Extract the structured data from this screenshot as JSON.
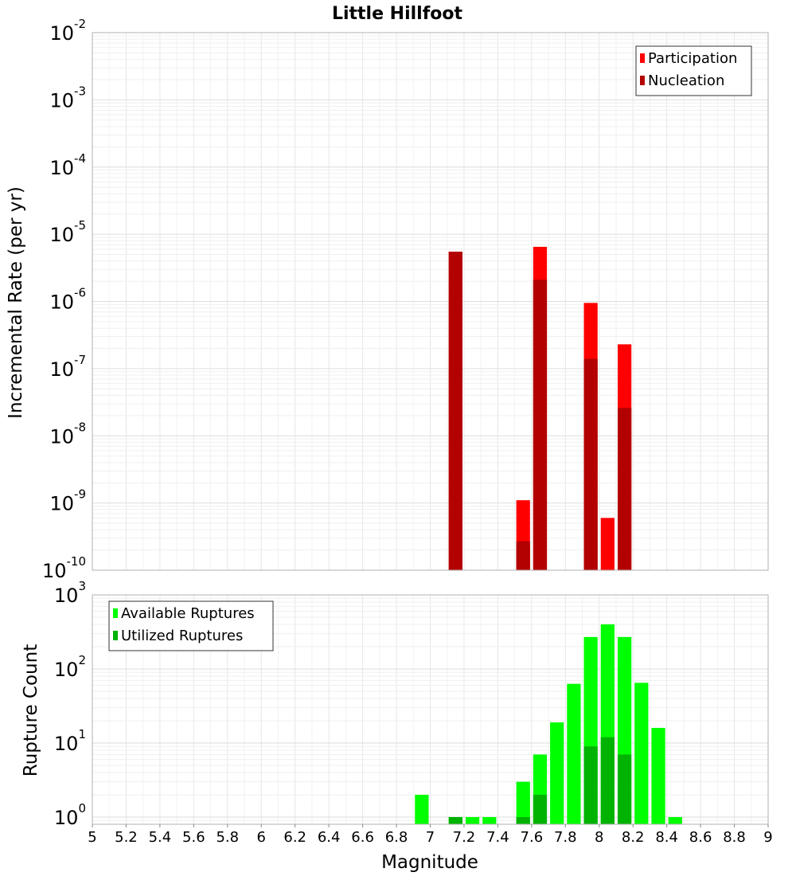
{
  "chart_data": [
    {
      "type": "bar",
      "panel": "top",
      "title": "Little Hillfoot",
      "xlabel": "",
      "ylabel": "Incremental Rate (per yr)",
      "yscale": "log",
      "ylim": [
        1e-10,
        0.01
      ],
      "xlim": [
        5,
        9
      ],
      "bin_width": 0.1,
      "grid": true,
      "legend_position": "top-right",
      "y_ticks": [
        {
          "base": "10",
          "exp": "-10",
          "value": 1e-10
        },
        {
          "base": "10",
          "exp": "-9",
          "value": 1e-09
        },
        {
          "base": "10",
          "exp": "-8",
          "value": 1e-08
        },
        {
          "base": "10",
          "exp": "-7",
          "value": 1e-07
        },
        {
          "base": "10",
          "exp": "-6",
          "value": 1e-06
        },
        {
          "base": "10",
          "exp": "-5",
          "value": 1e-05
        },
        {
          "base": "10",
          "exp": "-4",
          "value": 0.0001
        },
        {
          "base": "10",
          "exp": "-3",
          "value": 0.001
        },
        {
          "base": "10",
          "exp": "-2",
          "value": 0.01
        }
      ],
      "series": [
        {
          "name": "Participation",
          "color": "#ff0000",
          "x": [
            7.15,
            7.55,
            7.65,
            7.95,
            8.05,
            8.15
          ],
          "values": [
            5.5e-06,
            1.1e-09,
            6.5e-06,
            9.5e-07,
            6e-10,
            2.3e-07
          ]
        },
        {
          "name": "Nucleation",
          "color": "#b30000",
          "x": [
            7.15,
            7.55,
            7.65,
            7.95,
            8.15
          ],
          "values": [
            5.5e-06,
            2.7e-10,
            2.1e-06,
            1.4e-07,
            2.6e-08
          ]
        }
      ]
    },
    {
      "type": "bar",
      "panel": "bottom",
      "title": "",
      "xlabel": "Magnitude",
      "ylabel": "Rupture Count",
      "yscale": "log",
      "ylim": [
        0.8,
        1000
      ],
      "xlim": [
        5,
        9
      ],
      "bin_width": 0.1,
      "grid": true,
      "legend_position": "top-left",
      "x_ticks": [
        "5",
        "5.2",
        "5.4",
        "5.6",
        "5.8",
        "6",
        "6.2",
        "6.4",
        "6.6",
        "6.8",
        "7",
        "7.2",
        "7.4",
        "7.6",
        "7.8",
        "8",
        "8.2",
        "8.4",
        "8.6",
        "8.8",
        "9"
      ],
      "y_ticks": [
        {
          "base": "10",
          "exp": "0",
          "value": 1
        },
        {
          "base": "10",
          "exp": "1",
          "value": 10
        },
        {
          "base": "10",
          "exp": "2",
          "value": 100
        },
        {
          "base": "10",
          "exp": "3",
          "value": 1000
        }
      ],
      "series": [
        {
          "name": "Available Ruptures",
          "color": "#00ff00",
          "x": [
            6.95,
            7.15,
            7.25,
            7.35,
            7.55,
            7.65,
            7.75,
            7.85,
            7.95,
            8.05,
            8.15,
            8.25,
            8.35,
            8.45
          ],
          "values": [
            2,
            1,
            1,
            1,
            3,
            7,
            19,
            63,
            270,
            400,
            270,
            65,
            16,
            1
          ]
        },
        {
          "name": "Utilized Ruptures",
          "color": "#00b300",
          "x": [
            7.15,
            7.55,
            7.65,
            7.95,
            8.05,
            8.15
          ],
          "values": [
            1,
            1,
            2,
            9,
            12,
            7
          ]
        }
      ]
    }
  ]
}
